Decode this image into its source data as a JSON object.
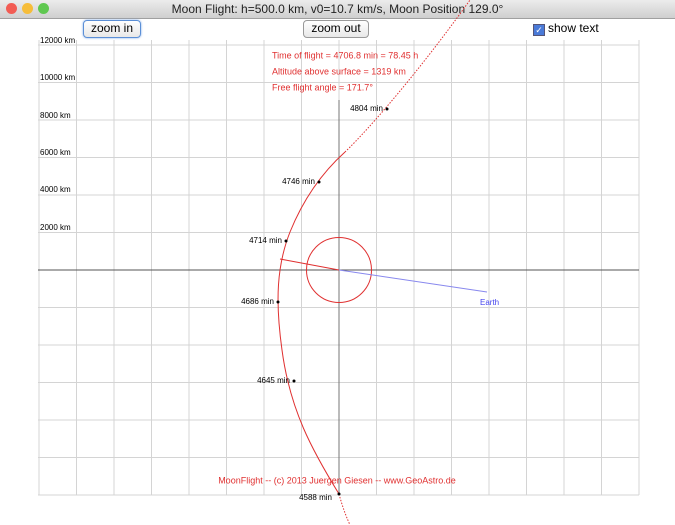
{
  "window": {
    "title": "Moon Flight: h=500.0 km, v0=10.7 km/s,  Moon Position 129.0°"
  },
  "toolbar": {
    "zoom_in": "zoom in",
    "zoom_out": "zoom out",
    "show_text": "show text"
  },
  "plot": {
    "y_axis_labels": [
      "12000 km",
      "10000 km",
      "8000 km",
      "6000 km",
      "4000 km",
      "2000 km"
    ],
    "info": [
      "Time of flight = 4706.8 min = 78.45 h",
      "Altitude above surface = 1319 km",
      "Free flight angle = 171.7°"
    ],
    "time_markers": [
      "4804 min",
      "4746 min",
      "4714 min",
      "4686 min",
      "4645 min",
      "4588 min"
    ],
    "earth_label": "Earth",
    "footer": "MoonFlight  --  (c) 2013 Juergen Giesen  --  www.GeoAstro.de"
  }
}
